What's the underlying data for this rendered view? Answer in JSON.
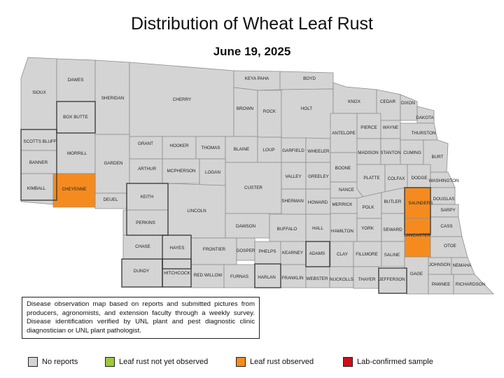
{
  "title": "Distribution of Wheat Leaf Rust",
  "date": "June 19, 2025",
  "note": "Disease observation map based on reports and submitted pictures from producers, agronomists, and extension faculty through a weekly survey. Disease identification verified by UNL plant and pest diagnostic clinic diagnostician or UNL plant pathologist.",
  "legend": [
    {
      "label": "No reports",
      "color": "#d4d4d4"
    },
    {
      "label": "Leaf rust not yet observed",
      "color": "#9cc83a"
    },
    {
      "label": "Leaf rust observed",
      "color": "#f58b1f"
    },
    {
      "label": "Lab-confirmed sample",
      "color": "#cc1018"
    }
  ],
  "colors": {
    "no_reports": "#d4d4d4",
    "observed": "#f58b1f",
    "border": "#8c8c8c"
  },
  "counties": [
    {
      "name": "SIOUX",
      "status": "none"
    },
    {
      "name": "DAWES",
      "status": "none"
    },
    {
      "name": "SHERIDAN",
      "status": "none"
    },
    {
      "name": "CHERRY",
      "status": "none"
    },
    {
      "name": "KEYA PAHA",
      "status": "none"
    },
    {
      "name": "BOYD",
      "status": "none"
    },
    {
      "name": "BOX BUTTE",
      "status": "none"
    },
    {
      "name": "BROWN",
      "status": "none"
    },
    {
      "name": "ROCK",
      "status": "none"
    },
    {
      "name": "HOLT",
      "status": "none"
    },
    {
      "name": "KNOX",
      "status": "none"
    },
    {
      "name": "CEDAR",
      "status": "none"
    },
    {
      "name": "DIXON",
      "status": "none"
    },
    {
      "name": "DAKOTA",
      "status": "none"
    },
    {
      "name": "SCOTTS BLUFF",
      "status": "none"
    },
    {
      "name": "MORRILL",
      "status": "none"
    },
    {
      "name": "GARDEN",
      "status": "none"
    },
    {
      "name": "GRANT",
      "status": "none"
    },
    {
      "name": "HOOKER",
      "status": "none"
    },
    {
      "name": "THOMAS",
      "status": "none"
    },
    {
      "name": "BLAINE",
      "status": "none"
    },
    {
      "name": "LOUP",
      "status": "none"
    },
    {
      "name": "GARFIELD",
      "status": "none"
    },
    {
      "name": "WHEELER",
      "status": "none"
    },
    {
      "name": "ANTELOPE",
      "status": "none"
    },
    {
      "name": "PIERCE",
      "status": "none"
    },
    {
      "name": "WAYNE",
      "status": "none"
    },
    {
      "name": "THURSTON",
      "status": "none"
    },
    {
      "name": "BANNER",
      "status": "none"
    },
    {
      "name": "ARTHUR",
      "status": "none"
    },
    {
      "name": "MCPHERSON",
      "status": "none"
    },
    {
      "name": "LOGAN",
      "status": "none"
    },
    {
      "name": "CUSTER",
      "status": "none"
    },
    {
      "name": "VALLEY",
      "status": "none"
    },
    {
      "name": "GREELEY",
      "status": "none"
    },
    {
      "name": "BOONE",
      "status": "none"
    },
    {
      "name": "MADISON",
      "status": "none"
    },
    {
      "name": "STANTON",
      "status": "none"
    },
    {
      "name": "CUMING",
      "status": "none"
    },
    {
      "name": "BURT",
      "status": "none"
    },
    {
      "name": "KIMBALL",
      "status": "none"
    },
    {
      "name": "CHEYENNE",
      "status": "observed"
    },
    {
      "name": "DEUEL",
      "status": "none"
    },
    {
      "name": "KEITH",
      "status": "none"
    },
    {
      "name": "LINCOLN",
      "status": "none"
    },
    {
      "name": "SHERMAN",
      "status": "none"
    },
    {
      "name": "HOWARD",
      "status": "none"
    },
    {
      "name": "NANCE",
      "status": "none"
    },
    {
      "name": "PLATTE",
      "status": "none"
    },
    {
      "name": "COLFAX",
      "status": "none"
    },
    {
      "name": "DODGE",
      "status": "none"
    },
    {
      "name": "WASHINGTON",
      "status": "none"
    },
    {
      "name": "PERKINS",
      "status": "none"
    },
    {
      "name": "DAWSON",
      "status": "none"
    },
    {
      "name": "BUFFALO",
      "status": "none"
    },
    {
      "name": "HALL",
      "status": "none"
    },
    {
      "name": "MERRICK",
      "status": "none"
    },
    {
      "name": "POLK",
      "status": "none"
    },
    {
      "name": "BUTLER",
      "status": "none"
    },
    {
      "name": "SAUNDERS",
      "status": "observed"
    },
    {
      "name": "DOUGLAS",
      "status": "none"
    },
    {
      "name": "SARPY",
      "status": "none"
    },
    {
      "name": "HAMILTON",
      "status": "none"
    },
    {
      "name": "YORK",
      "status": "none"
    },
    {
      "name": "SEWARD",
      "status": "none"
    },
    {
      "name": "LANCASTER",
      "status": "observed"
    },
    {
      "name": "CASS",
      "status": "none"
    },
    {
      "name": "CHASE",
      "status": "none"
    },
    {
      "name": "HAYES",
      "status": "none"
    },
    {
      "name": "FRONTIER",
      "status": "none"
    },
    {
      "name": "GOSPER",
      "status": "none"
    },
    {
      "name": "PHELPS",
      "status": "none"
    },
    {
      "name": "KEARNEY",
      "status": "none"
    },
    {
      "name": "ADAMS",
      "status": "none"
    },
    {
      "name": "CLAY",
      "status": "none"
    },
    {
      "name": "FILLMORE",
      "status": "none"
    },
    {
      "name": "SALINE",
      "status": "none"
    },
    {
      "name": "OTOE",
      "status": "none"
    },
    {
      "name": "DUNDY",
      "status": "none"
    },
    {
      "name": "HITCHCOCK",
      "status": "none"
    },
    {
      "name": "RED WILLOW",
      "status": "none"
    },
    {
      "name": "FURNAS",
      "status": "none"
    },
    {
      "name": "HARLAN",
      "status": "none"
    },
    {
      "name": "FRANKLIN",
      "status": "none"
    },
    {
      "name": "WEBSTER",
      "status": "none"
    },
    {
      "name": "NUCKOLLS",
      "status": "none"
    },
    {
      "name": "THAYER",
      "status": "none"
    },
    {
      "name": "JEFFERSON",
      "status": "none"
    },
    {
      "name": "GAGE",
      "status": "none"
    },
    {
      "name": "JOHNSON",
      "status": "none"
    },
    {
      "name": "NEMAHA",
      "status": "none"
    },
    {
      "name": "PAWNEE",
      "status": "none"
    },
    {
      "name": "RICHARDSON",
      "status": "none"
    }
  ]
}
